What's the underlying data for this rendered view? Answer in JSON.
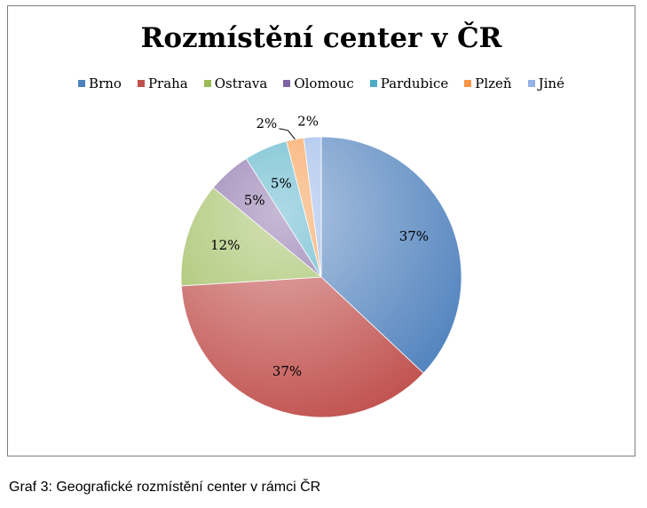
{
  "chart_data": {
    "type": "pie",
    "title": "Rozmístění center v ČR",
    "legend_position": "top",
    "slices": [
      {
        "name": "Brno",
        "value": 37,
        "label": "37%",
        "color": "#4f81bd"
      },
      {
        "name": "Praha",
        "value": 37,
        "label": "37%",
        "color": "#c0504d"
      },
      {
        "name": "Ostrava",
        "value": 12,
        "label": "12%",
        "color": "#9bbb59"
      },
      {
        "name": "Olomouc",
        "value": 5,
        "label": "5%",
        "color": "#8064a2"
      },
      {
        "name": "Pardubice",
        "value": 5,
        "label": "5%",
        "color": "#4bacc6"
      },
      {
        "name": "Plzeň",
        "value": 2,
        "label": "2%",
        "color": "#f79646"
      },
      {
        "name": "Jiné",
        "value": 2,
        "label": "2%",
        "color": "#95b3e6"
      }
    ]
  },
  "caption": "Graf 3: Geografické rozmístění center v rámci ČR"
}
